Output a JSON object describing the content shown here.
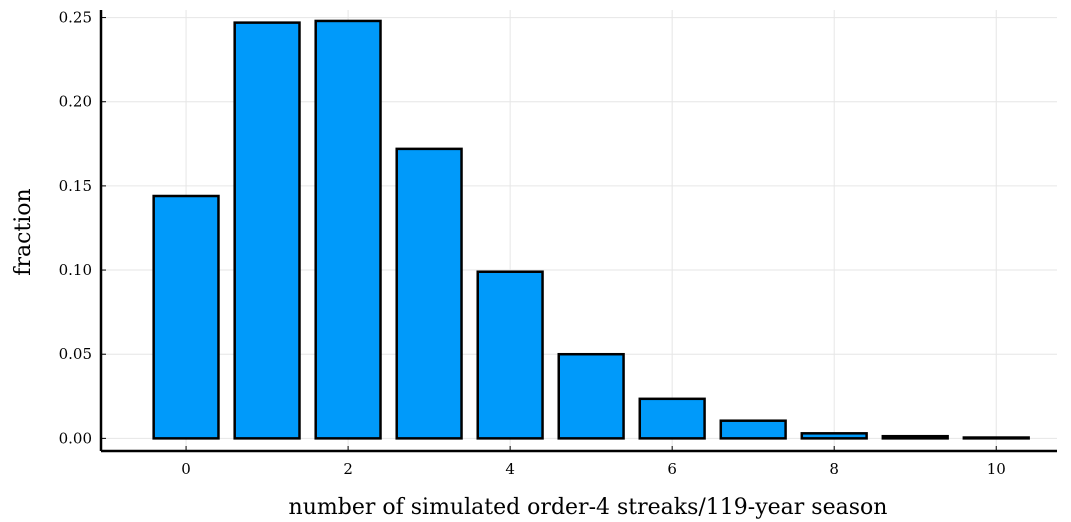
{
  "chart_data": {
    "type": "bar",
    "title": "",
    "xlabel": "number of simulated order-4 streaks/119-year season",
    "ylabel": "fraction",
    "x": [
      0,
      1,
      2,
      3,
      4,
      5,
      6,
      7,
      8,
      9,
      10
    ],
    "values": [
      0.144,
      0.247,
      0.248,
      0.172,
      0.099,
      0.05,
      0.0235,
      0.0105,
      0.003,
      0.0013,
      0.0005
    ],
    "xlim": [
      -1.05,
      10.75
    ],
    "ylim": [
      -0.0075,
      0.2545
    ],
    "xticks": [
      0,
      2,
      4,
      6,
      8,
      10
    ],
    "xtick_labels": [
      "0",
      "2",
      "4",
      "6",
      "8",
      "10"
    ],
    "yticks": [
      0,
      0.05,
      0.1,
      0.15,
      0.2,
      0.25
    ],
    "ytick_labels": [
      "0.00",
      "0.05",
      "0.10",
      "0.15",
      "0.20",
      "0.25"
    ],
    "grid": true,
    "legend": "none",
    "bar_color": "#009AFA",
    "edge_color": "#000000"
  }
}
